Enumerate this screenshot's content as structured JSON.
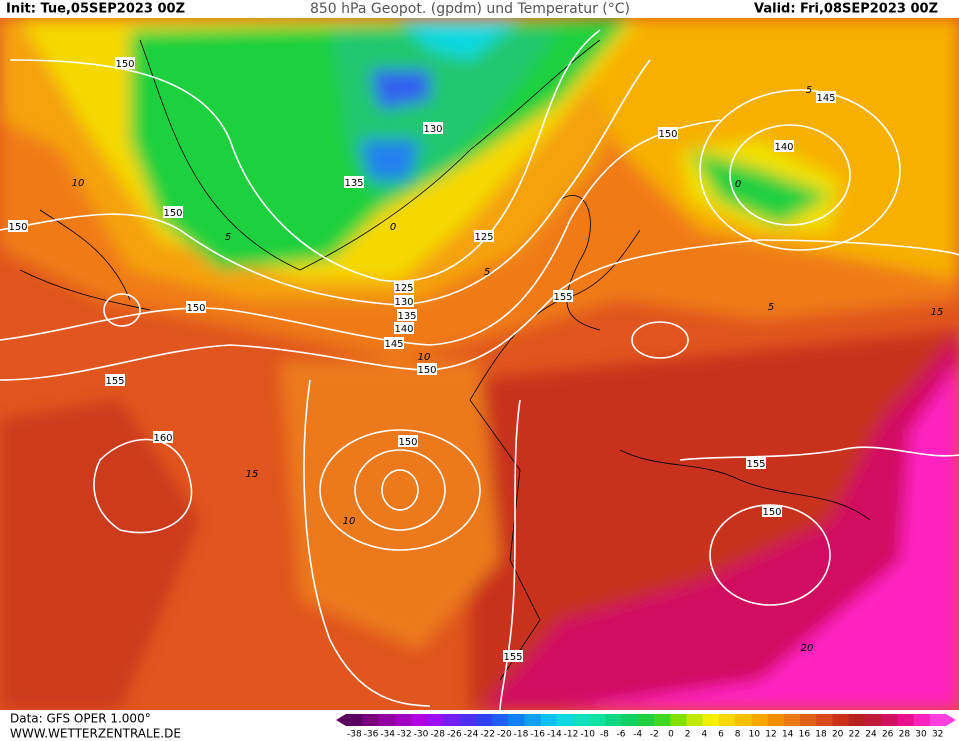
{
  "header": {
    "init": "Init: Tue,05SEP2023 00Z",
    "title": "850 hPa Geopot. (gpdm) und Temperatur (°C)",
    "valid": "Valid: Fri,08SEP2023 00Z"
  },
  "footer": {
    "data_source": "Data: GFS OPER 1.000°",
    "website": "WWW.WETTERZENTRALE.DE"
  },
  "contour_labels": [
    "150",
    "130",
    "135",
    "150",
    "150",
    "125",
    "125",
    "130",
    "135",
    "140",
    "145",
    "150",
    "150",
    "155",
    "160",
    "150",
    "155",
    "150",
    "145",
    "140",
    "155",
    "150",
    "155"
  ],
  "temperature_labels": [
    "10",
    "5",
    "0",
    "5",
    "10",
    "15",
    "10",
    "5",
    "0",
    "5",
    "20",
    "15"
  ],
  "colorbar": {
    "labels": [
      -38,
      -36,
      -34,
      -32,
      -30,
      -28,
      -26,
      -24,
      -22,
      -20,
      -18,
      -16,
      -14,
      -12,
      -10,
      -8,
      -6,
      -4,
      -2,
      0,
      2,
      4,
      6,
      8,
      10,
      12,
      14,
      16,
      18,
      20,
      22,
      24,
      26,
      28,
      30,
      32
    ],
    "colors": [
      "#5a0060",
      "#7a0080",
      "#9000a0",
      "#a000c0",
      "#b000e0",
      "#9a10f0",
      "#7020f0",
      "#5030f0",
      "#3040f0",
      "#2060f0",
      "#1080f0",
      "#10a0f0",
      "#10c0f0",
      "#10d8e0",
      "#10e0c0",
      "#10e0a0",
      "#10d880",
      "#10d060",
      "#20d040",
      "#40d820",
      "#80e000",
      "#c0e800",
      "#f0f000",
      "#f8d800",
      "#f8c000",
      "#f8a800",
      "#f09000",
      "#e87810",
      "#e06018",
      "#d84818",
      "#c83018",
      "#b82020",
      "#c01838",
      "#d01060",
      "#e81090",
      "#ff20c0",
      "#ff40e0"
    ]
  }
}
